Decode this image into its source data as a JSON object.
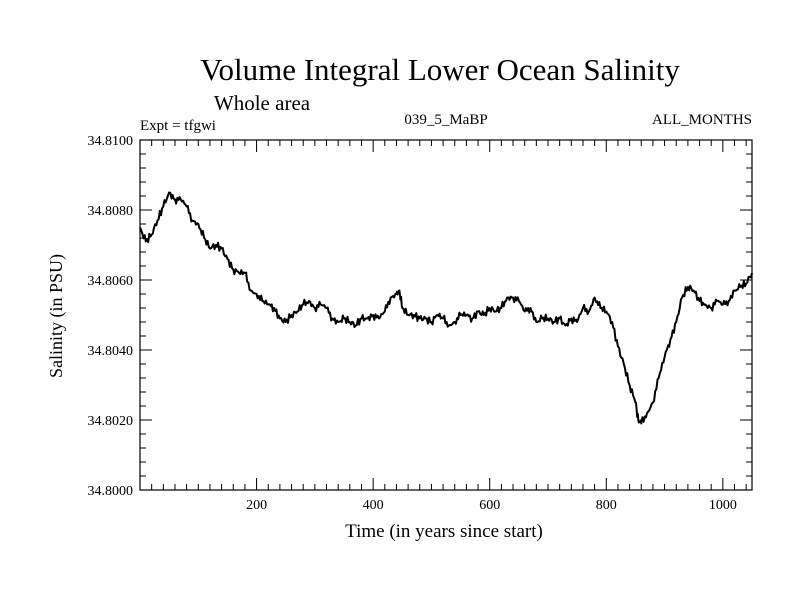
{
  "chart_data": {
    "type": "line",
    "title": "Volume Integral Lower Ocean Salinity",
    "subtitle": "Whole area",
    "annotations": {
      "left": "Expt = tfgwi",
      "center": "039_5_MaBP",
      "right": "ALL_MONTHS"
    },
    "xlabel": "Time (in years since start)",
    "ylabel": "Salinity (in PSU)",
    "xlim": [
      0,
      1050
    ],
    "ylim": [
      34.8,
      34.81
    ],
    "xticks": [
      200,
      400,
      600,
      800,
      1000
    ],
    "xtick_labels": [
      "200",
      "400",
      "600",
      "800",
      "1000"
    ],
    "yticks": [
      34.8,
      34.802,
      34.804,
      34.806,
      34.808,
      34.81
    ],
    "ytick_labels": [
      "34.8000",
      "34.8020",
      "34.8040",
      "34.8060",
      "34.8080",
      "34.8100"
    ],
    "grid": false,
    "series": [
      {
        "name": "Salinity",
        "x": [
          0,
          10,
          20,
          30,
          40,
          50,
          60,
          70,
          80,
          90,
          100,
          110,
          120,
          130,
          140,
          150,
          160,
          170,
          180,
          190,
          200,
          210,
          220,
          230,
          240,
          250,
          260,
          270,
          280,
          290,
          300,
          310,
          320,
          330,
          340,
          350,
          360,
          370,
          380,
          390,
          400,
          410,
          420,
          430,
          440,
          445,
          450,
          460,
          470,
          480,
          490,
          500,
          510,
          520,
          530,
          540,
          550,
          560,
          570,
          580,
          590,
          600,
          610,
          620,
          630,
          640,
          650,
          660,
          670,
          680,
          690,
          700,
          710,
          720,
          730,
          740,
          750,
          760,
          770,
          780,
          790,
          800,
          810,
          820,
          830,
          840,
          850,
          855,
          860,
          870,
          880,
          890,
          900,
          910,
          920,
          930,
          940,
          950,
          960,
          970,
          980,
          990,
          1000,
          1010,
          1020,
          1030,
          1040,
          1050
        ],
        "y": [
          34.8075,
          34.8071,
          34.8073,
          34.8077,
          34.8081,
          34.8085,
          34.8083,
          34.8083,
          34.8081,
          34.8077,
          34.8076,
          34.8072,
          34.8069,
          34.807,
          34.8069,
          34.8066,
          34.8063,
          34.8062,
          34.8062,
          34.8057,
          34.8056,
          34.8054,
          34.8053,
          34.8052,
          34.8049,
          34.8048,
          34.805,
          34.8051,
          34.8053,
          34.8054,
          34.8052,
          34.8053,
          34.8052,
          34.8049,
          34.8048,
          34.8049,
          34.8048,
          34.8047,
          34.8049,
          34.8049,
          34.805,
          34.8049,
          34.8051,
          34.8055,
          34.8056,
          34.8057,
          34.8052,
          34.805,
          34.805,
          34.8049,
          34.8049,
          34.8048,
          34.805,
          34.8049,
          34.8047,
          34.8048,
          34.805,
          34.805,
          34.8049,
          34.8051,
          34.805,
          34.8052,
          34.8051,
          34.8052,
          34.8055,
          34.8055,
          34.8054,
          34.8051,
          34.8052,
          34.8048,
          34.8049,
          34.8049,
          34.8048,
          34.8049,
          34.8047,
          34.8049,
          34.8048,
          34.8052,
          34.8051,
          34.8055,
          34.8052,
          34.8051,
          34.8048,
          34.8041,
          34.8036,
          34.803,
          34.8025,
          34.802,
          34.8019,
          34.8022,
          34.8025,
          34.8032,
          34.8038,
          34.8043,
          34.8048,
          34.8055,
          34.8058,
          34.8057,
          34.8054,
          34.8053,
          34.8052,
          34.8054,
          34.8053,
          34.8054,
          34.8057,
          34.8058,
          34.8059,
          34.8062
        ]
      }
    ]
  }
}
